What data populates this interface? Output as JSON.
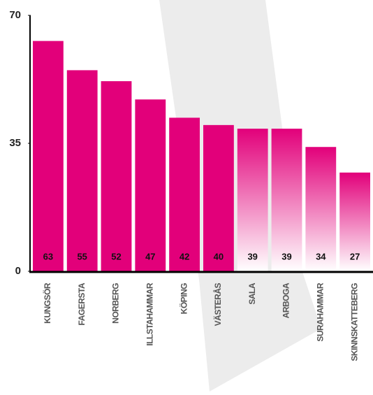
{
  "chart_data": {
    "type": "bar",
    "categories": [
      "KUNGSÖR",
      "FAGERSTA",
      "NORBERG",
      "ILLSTAHAMMAR",
      "KÖPING",
      "VÄSTERÅS",
      "SALA",
      "ARBOGA",
      "SURAHAMMAR",
      "SKINNSKATTEBERG"
    ],
    "values": [
      63,
      55,
      52,
      47,
      42,
      40,
      39,
      39,
      34,
      27
    ],
    "fills": [
      "solid",
      "solid",
      "solid",
      "solid",
      "solid",
      "solid",
      "gradient",
      "gradient",
      "gradient",
      "gradient"
    ],
    "color": "#e2007a",
    "ylim": [
      0,
      70
    ],
    "yticks": [
      0,
      35,
      70
    ]
  }
}
